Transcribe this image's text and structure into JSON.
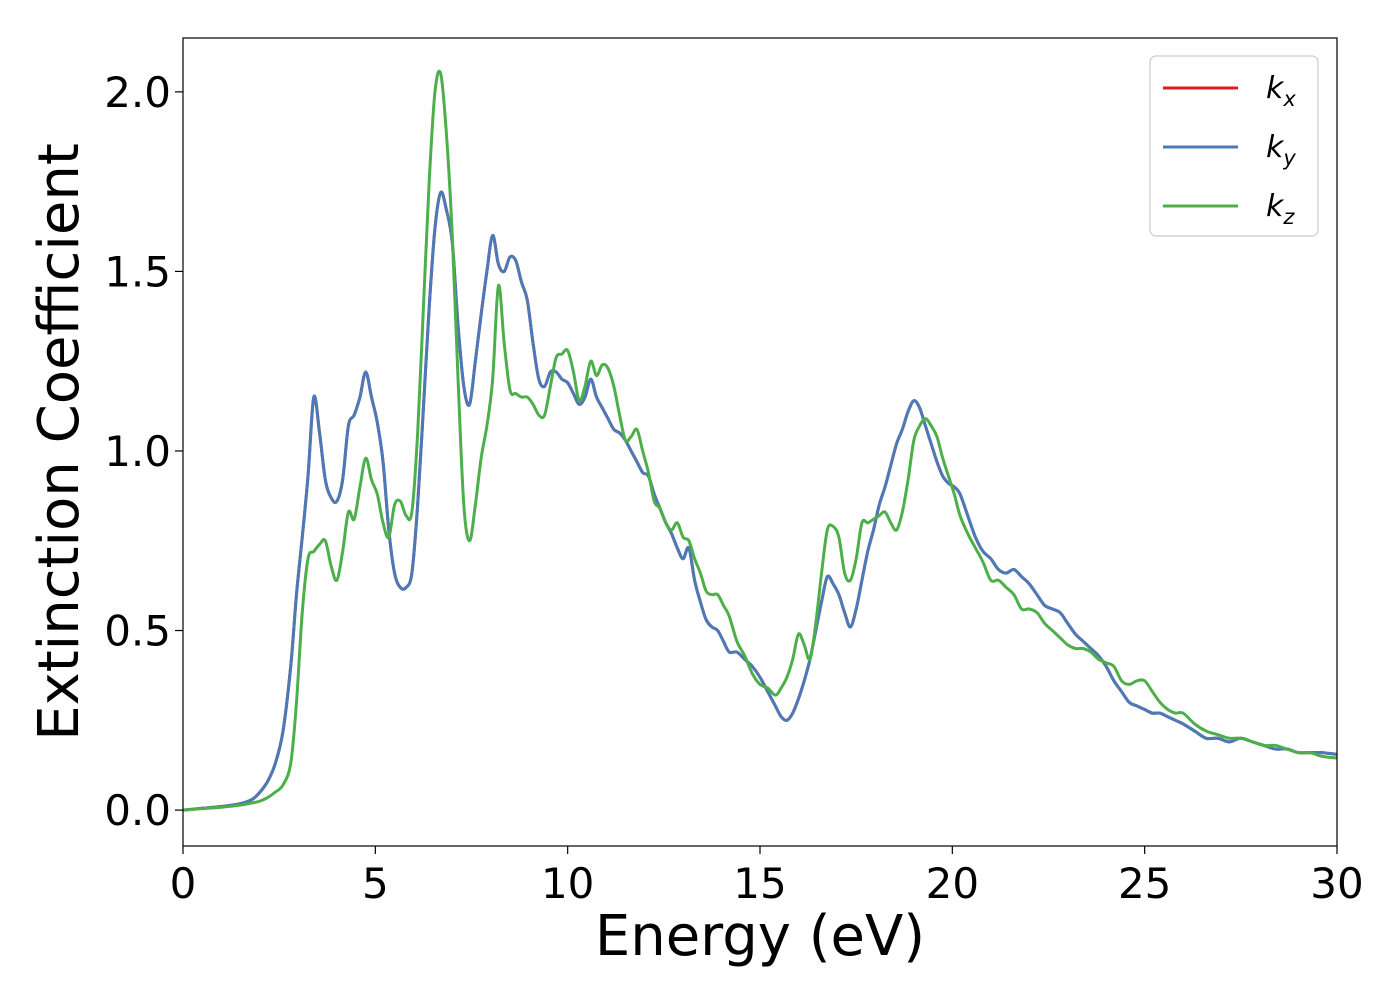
{
  "chart_data": {
    "type": "line",
    "xlabel": "Energy (eV)",
    "ylabel": "Extinction Coefficient",
    "xlim": [
      0,
      30
    ],
    "ylim": [
      -0.1,
      2.15
    ],
    "xticks": [
      0,
      5,
      10,
      15,
      20,
      25,
      30
    ],
    "yticks": [
      0.0,
      0.5,
      1.0,
      1.5,
      2.0
    ],
    "xtick_labels": [
      "0",
      "5",
      "10",
      "15",
      "20",
      "25",
      "30"
    ],
    "ytick_labels": [
      "0.0",
      "0.5",
      "1.0",
      "1.5",
      "2.0"
    ],
    "grid": false,
    "legend_position": "top-right",
    "series": [
      {
        "name": "kx",
        "label_base": "k",
        "label_sub": "x",
        "color": "#e41a1c",
        "x": [
          0,
          0.5,
          1.0,
          1.5,
          1.8,
          2.0,
          2.2,
          2.4,
          2.6,
          2.8,
          2.95,
          3.1,
          3.25,
          3.4,
          3.55,
          3.7,
          3.85,
          4.0,
          4.15,
          4.3,
          4.45,
          4.6,
          4.75,
          4.9,
          5.05,
          5.2,
          5.35,
          5.5,
          5.65,
          5.8,
          5.95,
          6.1,
          6.25,
          6.4,
          6.55,
          6.7,
          6.85,
          7.0,
          7.15,
          7.3,
          7.45,
          7.6,
          7.75,
          7.9,
          8.05,
          8.2,
          8.35,
          8.5,
          8.65,
          8.8,
          8.95,
          9.1,
          9.25,
          9.4,
          9.55,
          9.7,
          9.85,
          10.0,
          10.15,
          10.3,
          10.45,
          10.6,
          10.75,
          10.9,
          11.05,
          11.2,
          11.35,
          11.5,
          11.65,
          11.8,
          11.95,
          12.1,
          12.25,
          12.4,
          12.55,
          12.7,
          12.85,
          13.0,
          13.15,
          13.3,
          13.45,
          13.6,
          13.75,
          13.9,
          14.05,
          14.2,
          14.4,
          14.6,
          14.8,
          15.0,
          15.2,
          15.4,
          15.55,
          15.7,
          15.85,
          16.0,
          16.15,
          16.3,
          16.45,
          16.6,
          16.75,
          16.9,
          17.05,
          17.2,
          17.35,
          17.5,
          17.65,
          17.8,
          17.95,
          18.1,
          18.25,
          18.4,
          18.55,
          18.7,
          18.85,
          19.0,
          19.15,
          19.3,
          19.45,
          19.6,
          19.75,
          19.9,
          20.05,
          20.2,
          20.4,
          20.6,
          20.8,
          21.0,
          21.2,
          21.4,
          21.6,
          21.8,
          22.0,
          22.2,
          22.4,
          22.6,
          22.8,
          23.0,
          23.2,
          23.4,
          23.6,
          23.8,
          24.0,
          24.2,
          24.4,
          24.6,
          24.8,
          25.0,
          25.2,
          25.4,
          25.6,
          25.8,
          26.0,
          26.3,
          26.6,
          26.9,
          27.2,
          27.5,
          27.8,
          28.1,
          28.4,
          28.7,
          29.0,
          29.3,
          29.6,
          30.0
        ],
        "y": [
          0.0,
          0.005,
          0.01,
          0.018,
          0.03,
          0.05,
          0.08,
          0.13,
          0.22,
          0.4,
          0.6,
          0.76,
          0.93,
          1.15,
          1.05,
          0.92,
          0.87,
          0.86,
          0.92,
          1.07,
          1.1,
          1.15,
          1.22,
          1.15,
          1.08,
          0.97,
          0.78,
          0.66,
          0.62,
          0.62,
          0.66,
          0.85,
          1.12,
          1.4,
          1.62,
          1.72,
          1.67,
          1.58,
          1.35,
          1.18,
          1.13,
          1.25,
          1.38,
          1.5,
          1.6,
          1.52,
          1.5,
          1.54,
          1.53,
          1.47,
          1.42,
          1.3,
          1.2,
          1.18,
          1.22,
          1.22,
          1.2,
          1.19,
          1.16,
          1.13,
          1.15,
          1.2,
          1.15,
          1.12,
          1.09,
          1.06,
          1.05,
          1.03,
          1.0,
          0.97,
          0.94,
          0.93,
          0.88,
          0.84,
          0.8,
          0.77,
          0.73,
          0.7,
          0.73,
          0.64,
          0.58,
          0.53,
          0.51,
          0.5,
          0.47,
          0.44,
          0.44,
          0.42,
          0.4,
          0.37,
          0.33,
          0.29,
          0.26,
          0.25,
          0.27,
          0.31,
          0.36,
          0.42,
          0.5,
          0.58,
          0.65,
          0.63,
          0.6,
          0.55,
          0.51,
          0.56,
          0.64,
          0.72,
          0.78,
          0.85,
          0.9,
          0.96,
          1.02,
          1.06,
          1.11,
          1.14,
          1.12,
          1.07,
          1.02,
          0.97,
          0.93,
          0.91,
          0.9,
          0.88,
          0.82,
          0.76,
          0.72,
          0.7,
          0.67,
          0.66,
          0.67,
          0.65,
          0.63,
          0.6,
          0.57,
          0.56,
          0.55,
          0.52,
          0.49,
          0.47,
          0.45,
          0.43,
          0.4,
          0.36,
          0.33,
          0.3,
          0.29,
          0.28,
          0.27,
          0.27,
          0.26,
          0.25,
          0.24,
          0.22,
          0.2,
          0.2,
          0.19,
          0.2,
          0.19,
          0.18,
          0.17,
          0.17,
          0.16,
          0.16,
          0.16,
          0.155
        ]
      },
      {
        "name": "ky",
        "label_base": "k",
        "label_sub": "y",
        "color": "#4a7ab7",
        "x": [
          0,
          0.5,
          1.0,
          1.5,
          1.8,
          2.0,
          2.2,
          2.4,
          2.6,
          2.8,
          2.95,
          3.1,
          3.25,
          3.4,
          3.55,
          3.7,
          3.85,
          4.0,
          4.15,
          4.3,
          4.45,
          4.6,
          4.75,
          4.9,
          5.05,
          5.2,
          5.35,
          5.5,
          5.65,
          5.8,
          5.95,
          6.1,
          6.25,
          6.4,
          6.55,
          6.7,
          6.85,
          7.0,
          7.15,
          7.3,
          7.45,
          7.6,
          7.75,
          7.9,
          8.05,
          8.2,
          8.35,
          8.5,
          8.65,
          8.8,
          8.95,
          9.1,
          9.25,
          9.4,
          9.55,
          9.7,
          9.85,
          10.0,
          10.15,
          10.3,
          10.45,
          10.6,
          10.75,
          10.9,
          11.05,
          11.2,
          11.35,
          11.5,
          11.65,
          11.8,
          11.95,
          12.1,
          12.25,
          12.4,
          12.55,
          12.7,
          12.85,
          13.0,
          13.15,
          13.3,
          13.45,
          13.6,
          13.75,
          13.9,
          14.05,
          14.2,
          14.4,
          14.6,
          14.8,
          15.0,
          15.2,
          15.4,
          15.55,
          15.7,
          15.85,
          16.0,
          16.15,
          16.3,
          16.45,
          16.6,
          16.75,
          16.9,
          17.05,
          17.2,
          17.35,
          17.5,
          17.65,
          17.8,
          17.95,
          18.1,
          18.25,
          18.4,
          18.55,
          18.7,
          18.85,
          19.0,
          19.15,
          19.3,
          19.45,
          19.6,
          19.75,
          19.9,
          20.05,
          20.2,
          20.4,
          20.6,
          20.8,
          21.0,
          21.2,
          21.4,
          21.6,
          21.8,
          22.0,
          22.2,
          22.4,
          22.6,
          22.8,
          23.0,
          23.2,
          23.4,
          23.6,
          23.8,
          24.0,
          24.2,
          24.4,
          24.6,
          24.8,
          25.0,
          25.2,
          25.4,
          25.6,
          25.8,
          26.0,
          26.3,
          26.6,
          26.9,
          27.2,
          27.5,
          27.8,
          28.1,
          28.4,
          28.7,
          29.0,
          29.3,
          29.6,
          30.0
        ],
        "y": [
          0.0,
          0.005,
          0.01,
          0.018,
          0.03,
          0.05,
          0.08,
          0.13,
          0.22,
          0.4,
          0.6,
          0.76,
          0.93,
          1.15,
          1.05,
          0.92,
          0.87,
          0.86,
          0.92,
          1.07,
          1.1,
          1.15,
          1.22,
          1.15,
          1.08,
          0.97,
          0.78,
          0.66,
          0.62,
          0.62,
          0.66,
          0.85,
          1.12,
          1.4,
          1.62,
          1.72,
          1.67,
          1.58,
          1.35,
          1.18,
          1.13,
          1.25,
          1.38,
          1.5,
          1.6,
          1.52,
          1.5,
          1.54,
          1.53,
          1.47,
          1.42,
          1.3,
          1.2,
          1.18,
          1.22,
          1.22,
          1.2,
          1.19,
          1.16,
          1.13,
          1.15,
          1.2,
          1.15,
          1.12,
          1.09,
          1.06,
          1.05,
          1.03,
          1.0,
          0.97,
          0.94,
          0.93,
          0.88,
          0.84,
          0.8,
          0.77,
          0.73,
          0.7,
          0.73,
          0.64,
          0.58,
          0.53,
          0.51,
          0.5,
          0.47,
          0.44,
          0.44,
          0.42,
          0.4,
          0.37,
          0.33,
          0.29,
          0.26,
          0.25,
          0.27,
          0.31,
          0.36,
          0.42,
          0.5,
          0.58,
          0.65,
          0.63,
          0.6,
          0.55,
          0.51,
          0.56,
          0.64,
          0.72,
          0.78,
          0.85,
          0.9,
          0.96,
          1.02,
          1.06,
          1.11,
          1.14,
          1.12,
          1.07,
          1.02,
          0.97,
          0.93,
          0.91,
          0.9,
          0.88,
          0.82,
          0.76,
          0.72,
          0.7,
          0.67,
          0.66,
          0.67,
          0.65,
          0.63,
          0.6,
          0.57,
          0.56,
          0.55,
          0.52,
          0.49,
          0.47,
          0.45,
          0.43,
          0.4,
          0.36,
          0.33,
          0.3,
          0.29,
          0.28,
          0.27,
          0.27,
          0.26,
          0.25,
          0.24,
          0.22,
          0.2,
          0.2,
          0.19,
          0.2,
          0.19,
          0.18,
          0.17,
          0.17,
          0.16,
          0.16,
          0.16,
          0.155
        ]
      },
      {
        "name": "kz",
        "label_base": "k",
        "label_sub": "z",
        "color": "#4daf4a",
        "x": [
          0,
          0.5,
          1.0,
          1.5,
          1.8,
          2.0,
          2.2,
          2.4,
          2.6,
          2.8,
          2.95,
          3.1,
          3.25,
          3.4,
          3.55,
          3.7,
          3.85,
          4.0,
          4.15,
          4.3,
          4.45,
          4.6,
          4.75,
          4.9,
          5.05,
          5.2,
          5.35,
          5.5,
          5.65,
          5.8,
          5.95,
          6.1,
          6.25,
          6.4,
          6.55,
          6.7,
          6.85,
          7.0,
          7.15,
          7.3,
          7.45,
          7.6,
          7.75,
          7.9,
          8.05,
          8.2,
          8.35,
          8.5,
          8.65,
          8.8,
          8.95,
          9.1,
          9.25,
          9.4,
          9.55,
          9.7,
          9.85,
          10.0,
          10.15,
          10.3,
          10.45,
          10.6,
          10.75,
          10.9,
          11.05,
          11.2,
          11.35,
          11.5,
          11.65,
          11.8,
          11.95,
          12.1,
          12.25,
          12.4,
          12.55,
          12.7,
          12.85,
          13.0,
          13.15,
          13.3,
          13.45,
          13.6,
          13.75,
          13.9,
          14.05,
          14.2,
          14.4,
          14.6,
          14.8,
          15.0,
          15.2,
          15.4,
          15.55,
          15.7,
          15.85,
          16.0,
          16.15,
          16.3,
          16.45,
          16.6,
          16.75,
          16.9,
          17.05,
          17.2,
          17.35,
          17.5,
          17.65,
          17.8,
          17.95,
          18.1,
          18.25,
          18.4,
          18.55,
          18.7,
          18.85,
          19.0,
          19.15,
          19.3,
          19.45,
          19.6,
          19.75,
          19.9,
          20.05,
          20.2,
          20.4,
          20.6,
          20.8,
          21.0,
          21.2,
          21.4,
          21.6,
          21.8,
          22.0,
          22.2,
          22.4,
          22.6,
          22.8,
          23.0,
          23.2,
          23.4,
          23.6,
          23.8,
          24.0,
          24.2,
          24.4,
          24.6,
          24.8,
          25.0,
          25.2,
          25.4,
          25.6,
          25.8,
          26.0,
          26.3,
          26.6,
          26.9,
          27.2,
          27.5,
          27.8,
          28.1,
          28.4,
          28.7,
          29.0,
          29.3,
          29.6,
          30.0
        ],
        "y": [
          0.0,
          0.004,
          0.008,
          0.014,
          0.02,
          0.025,
          0.035,
          0.05,
          0.07,
          0.13,
          0.3,
          0.55,
          0.7,
          0.72,
          0.74,
          0.75,
          0.68,
          0.64,
          0.72,
          0.83,
          0.81,
          0.9,
          0.98,
          0.92,
          0.88,
          0.8,
          0.76,
          0.85,
          0.86,
          0.82,
          0.83,
          1.05,
          1.4,
          1.75,
          2.0,
          2.05,
          1.88,
          1.6,
          1.2,
          0.85,
          0.75,
          0.85,
          0.98,
          1.07,
          1.2,
          1.46,
          1.3,
          1.17,
          1.16,
          1.15,
          1.15,
          1.13,
          1.1,
          1.1,
          1.18,
          1.26,
          1.27,
          1.28,
          1.22,
          1.14,
          1.18,
          1.25,
          1.21,
          1.24,
          1.23,
          1.18,
          1.1,
          1.03,
          1.04,
          1.06,
          1.0,
          0.94,
          0.86,
          0.84,
          0.8,
          0.78,
          0.8,
          0.76,
          0.75,
          0.7,
          0.66,
          0.61,
          0.6,
          0.6,
          0.57,
          0.54,
          0.47,
          0.43,
          0.38,
          0.35,
          0.34,
          0.32,
          0.34,
          0.37,
          0.42,
          0.49,
          0.46,
          0.42,
          0.52,
          0.66,
          0.78,
          0.79,
          0.76,
          0.66,
          0.64,
          0.7,
          0.8,
          0.8,
          0.81,
          0.82,
          0.83,
          0.8,
          0.78,
          0.83,
          0.92,
          1.03,
          1.07,
          1.09,
          1.07,
          1.04,
          0.98,
          0.93,
          0.88,
          0.82,
          0.77,
          0.73,
          0.69,
          0.64,
          0.64,
          0.62,
          0.6,
          0.56,
          0.56,
          0.55,
          0.52,
          0.5,
          0.48,
          0.46,
          0.45,
          0.45,
          0.44,
          0.42,
          0.41,
          0.4,
          0.36,
          0.35,
          0.36,
          0.36,
          0.33,
          0.3,
          0.28,
          0.27,
          0.27,
          0.24,
          0.22,
          0.21,
          0.2,
          0.2,
          0.19,
          0.18,
          0.18,
          0.17,
          0.16,
          0.16,
          0.15,
          0.145
        ]
      }
    ]
  }
}
